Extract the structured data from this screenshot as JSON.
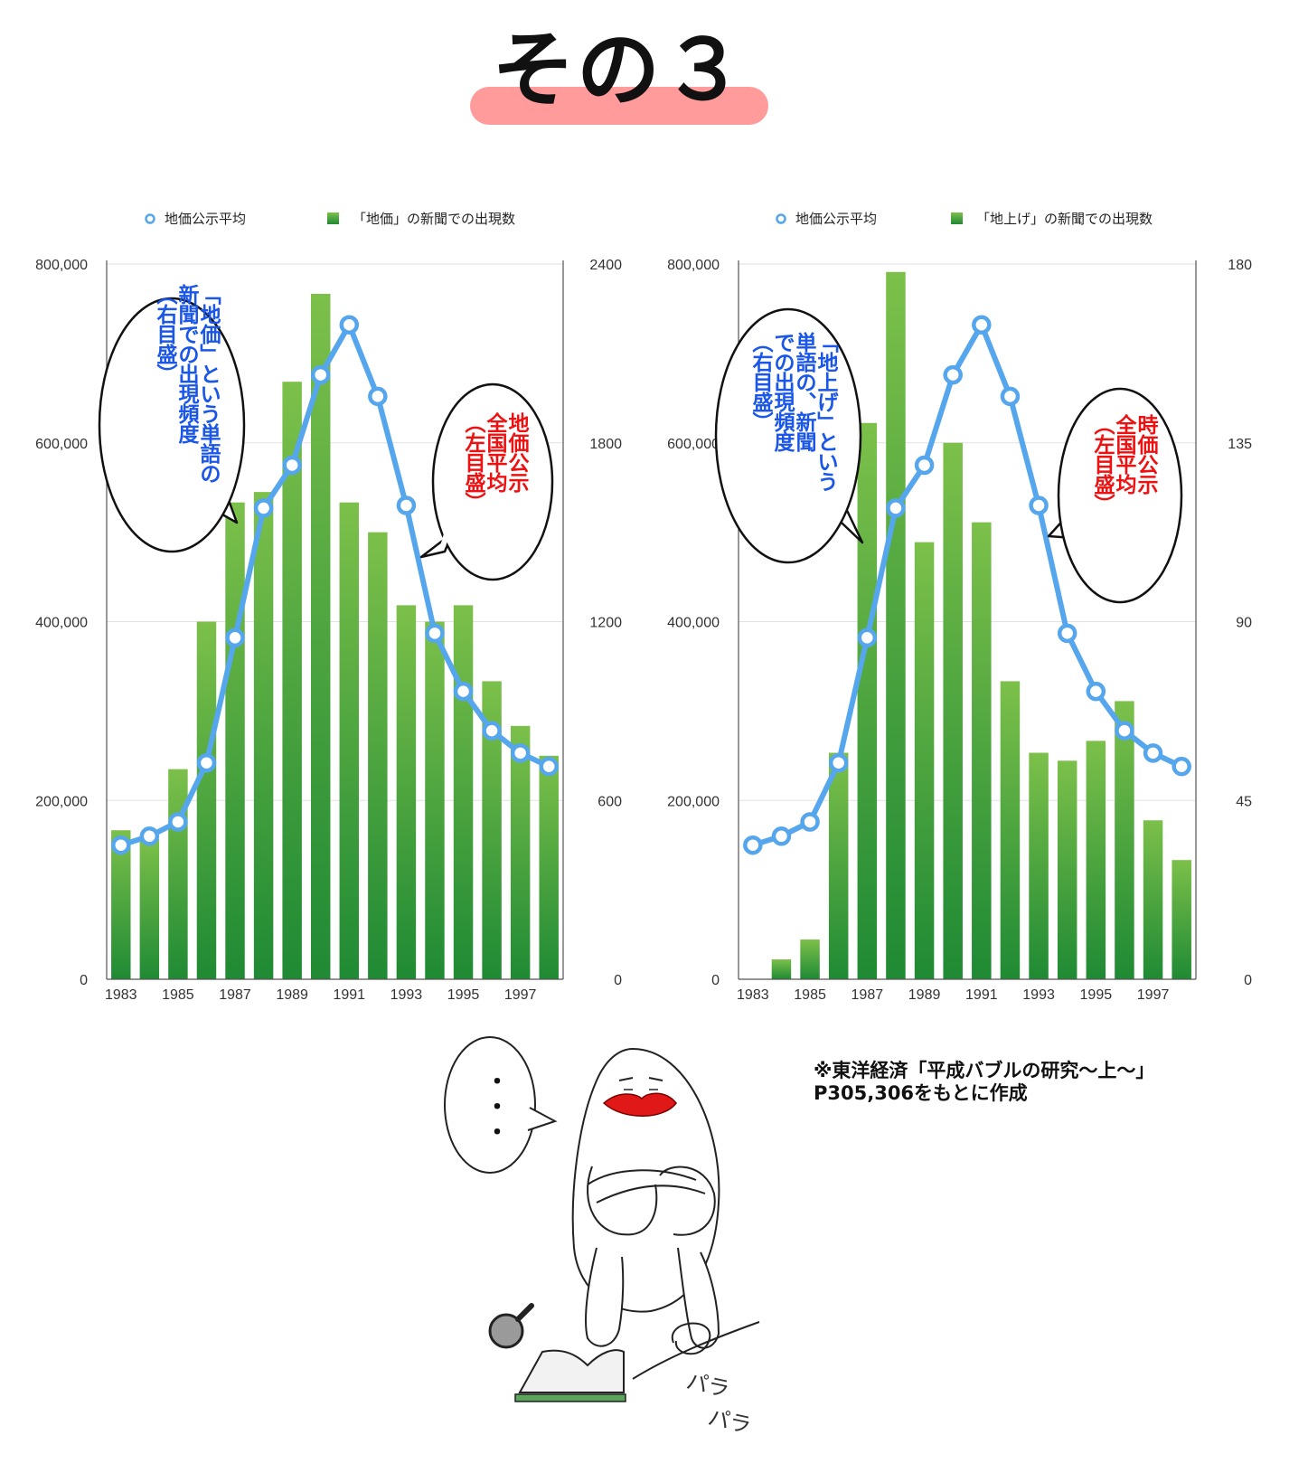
{
  "title": "その３",
  "colors": {
    "line": "#55a6ec",
    "bar_top": "#7cc04a",
    "bar_bottom": "#1f8a34",
    "title_underline": "#ff9b9b",
    "bubble_blue_text": "#1a56e8",
    "bubble_red_text": "#ee1111",
    "lips": "#e01818"
  },
  "chart_data": [
    {
      "type": "bar+line",
      "legend": [
        {
          "marker": "line-circle",
          "label": "地価公示平均"
        },
        {
          "marker": "square",
          "label": "「地価」の新聞での出現数"
        }
      ],
      "x": [
        1983,
        1984,
        1985,
        1986,
        1987,
        1988,
        1989,
        1990,
        1991,
        1992,
        1993,
        1994,
        1995,
        1996,
        1997,
        1998
      ],
      "x_tick_labels": [
        "1983",
        "1985",
        "1987",
        "1989",
        "1991",
        "1993",
        "1995",
        "1997"
      ],
      "y_left": {
        "range": [
          0,
          800000
        ],
        "ticks": [
          "0",
          "200,000",
          "400,000",
          "600,000",
          "800,000"
        ]
      },
      "y_right": {
        "range": [
          0,
          2400
        ],
        "ticks": [
          "0",
          "600",
          "1200",
          "1800",
          "2400"
        ]
      },
      "bars_right_axis": [
        500,
        470,
        705,
        1200,
        1600,
        1635,
        2005,
        2300,
        1600,
        1500,
        1255,
        1200,
        1255,
        1000,
        850,
        750
      ],
      "line_left_axis": [
        150000,
        160000,
        176000,
        242000,
        382000,
        527000,
        575000,
        676000,
        732000,
        652000,
        530000,
        387000,
        322000,
        278000,
        253000,
        238000
      ],
      "bubble_blue": {
        "lines": [
          "「地価」という単語の",
          "新聞での出現頻度",
          "（右目盛）"
        ]
      },
      "bubble_red": {
        "lines": [
          "地価公示",
          "全国平均",
          "（左目盛）"
        ]
      }
    },
    {
      "type": "bar+line",
      "legend": [
        {
          "marker": "line-circle",
          "label": "地価公示平均"
        },
        {
          "marker": "square",
          "label": "「地上げ」の新聞での出現数"
        }
      ],
      "x": [
        1983,
        1984,
        1985,
        1986,
        1987,
        1988,
        1989,
        1990,
        1991,
        1992,
        1993,
        1994,
        1995,
        1996,
        1997,
        1998
      ],
      "x_tick_labels": [
        "1983",
        "1985",
        "1987",
        "1989",
        "1991",
        "1993",
        "1995",
        "1997"
      ],
      "y_left": {
        "range": [
          0,
          800000
        ],
        "ticks": [
          "0",
          "200,000",
          "400,000",
          "600,000",
          "800,000"
        ]
      },
      "y_right": {
        "range": [
          0,
          180
        ],
        "ticks": [
          "0",
          "45",
          "90",
          "135",
          "180"
        ]
      },
      "bars_right_axis": [
        0,
        5,
        10,
        57,
        140,
        178,
        110,
        135,
        115,
        75,
        57,
        55,
        60,
        70,
        40,
        30
      ],
      "line_left_axis": [
        150000,
        160000,
        176000,
        242000,
        382000,
        527000,
        575000,
        676000,
        732000,
        652000,
        530000,
        387000,
        322000,
        278000,
        253000,
        238000
      ],
      "bubble_blue": {
        "lines": [
          "「地上げ」という",
          "単語の、新聞",
          "での出現頻度",
          "（右目盛）"
        ]
      },
      "bubble_red": {
        "lines": [
          "時価公示",
          "全国平均",
          "（左目盛）"
        ]
      }
    }
  ],
  "source_note": {
    "line1": "※東洋経済「平成バブルの研究〜上〜」",
    "line2": "P305,306をもとに作成"
  },
  "illustration": {
    "speech": "・・・",
    "sound": "パラパラ"
  }
}
